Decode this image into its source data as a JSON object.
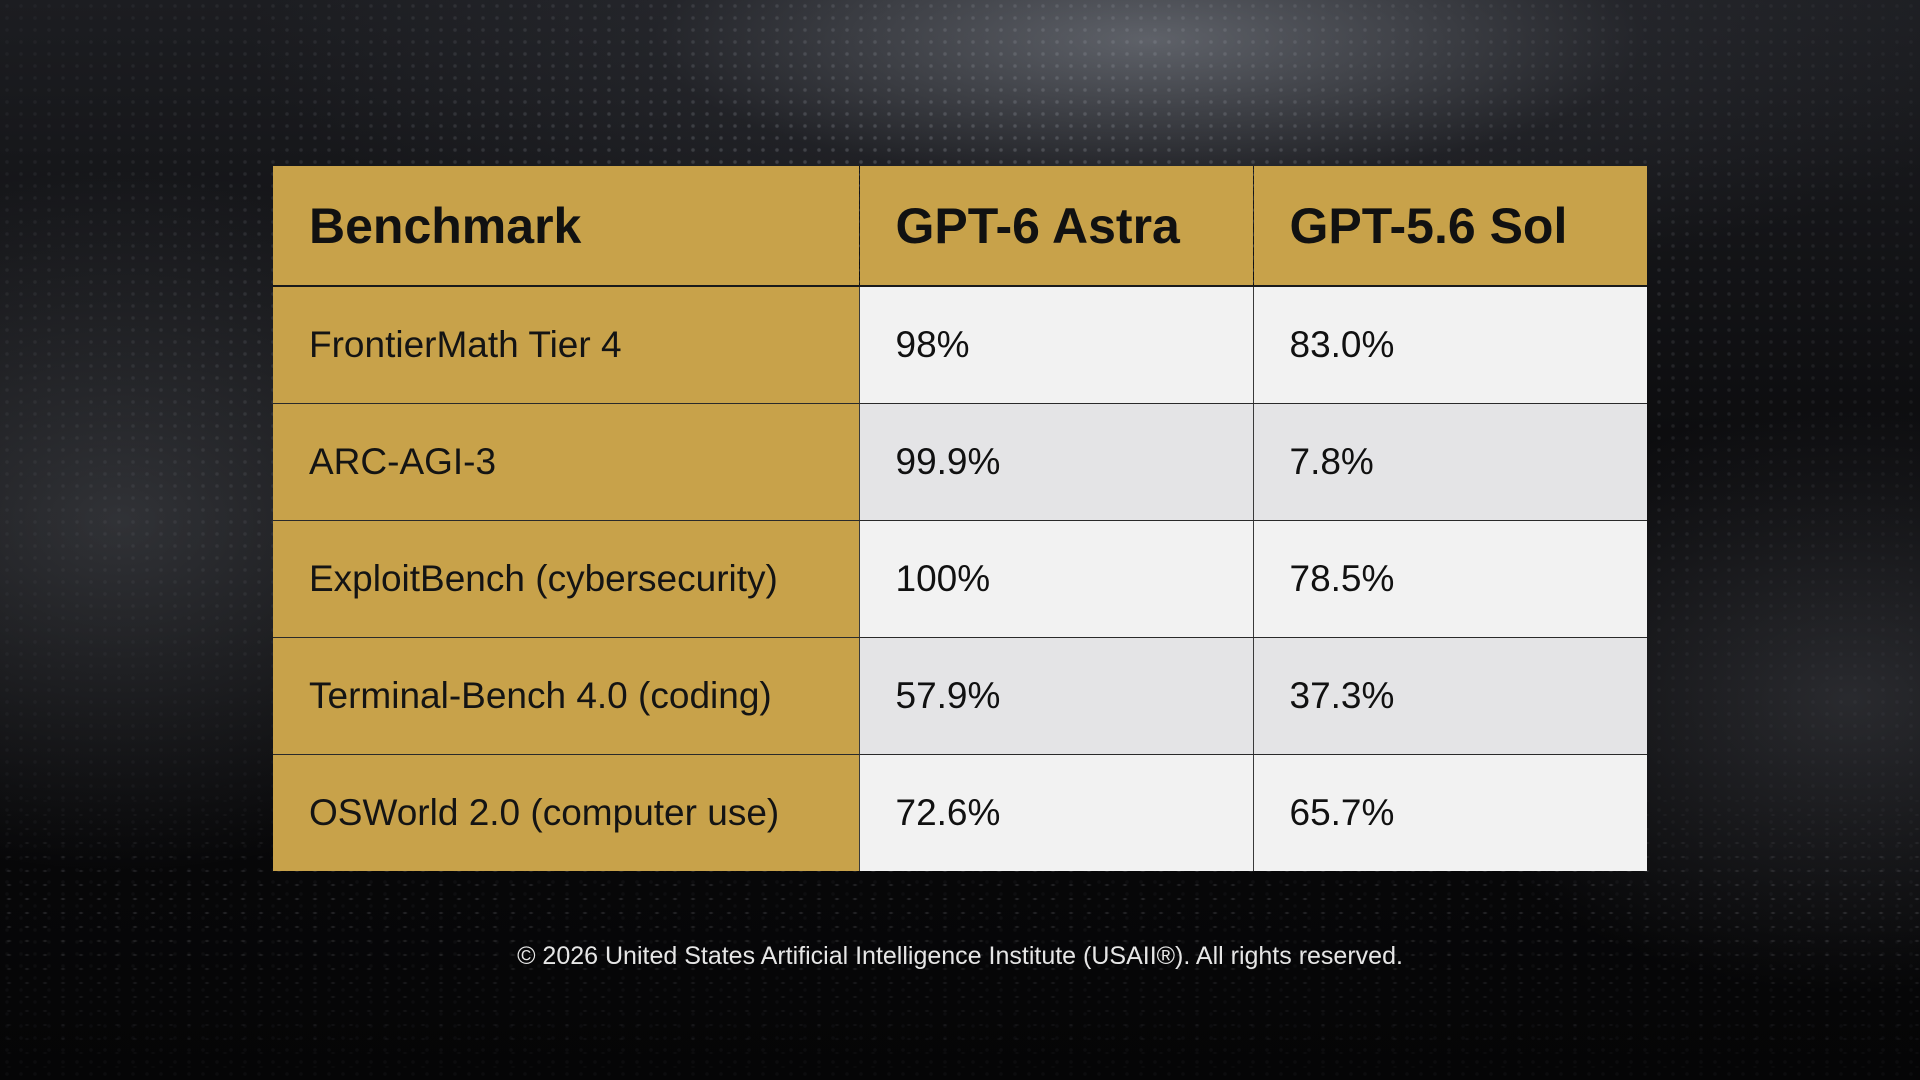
{
  "table": {
    "headers": [
      "Benchmark",
      "GPT-6 Astra",
      "GPT-5.6 Sol"
    ],
    "rows": [
      [
        "FrontierMath Tier 4",
        "98%",
        "83.0%"
      ],
      [
        "ARC-AGI-3",
        "99.9%",
        "7.8%"
      ],
      [
        "ExploitBench (cybersecurity)",
        "100%",
        "78.5%"
      ],
      [
        "Terminal-Bench 4.0 (coding)",
        "57.9%",
        "37.3%"
      ],
      [
        "OSWorld 2.0 (computer use)",
        "72.6%",
        "65.7%"
      ]
    ]
  },
  "footer": {
    "copyright": "© 2026 United States Artificial Intelligence Institute (USAII®). All rights reserved."
  },
  "colors": {
    "header_gold": "#c8a24a",
    "cell_light": "#f2f2f2",
    "cell_alt": "#e4e4e6",
    "background": "#050505"
  }
}
